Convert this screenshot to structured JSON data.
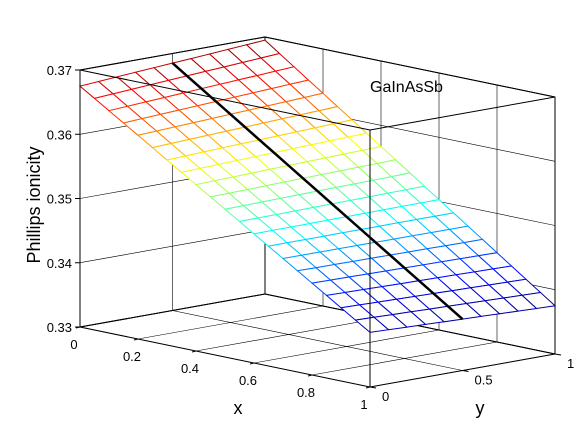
{
  "chart_data": {
    "type": "surface",
    "title": "",
    "annotation": "GaInAsSb",
    "xlabel": "x",
    "ylabel": "y",
    "zlabel": "Phillips ionicity",
    "xlim": [
      0,
      1
    ],
    "ylim": [
      0,
      1
    ],
    "zlim": [
      0.33,
      0.37
    ],
    "x_ticks": [
      "0",
      "0.2",
      "0.4",
      "0.6",
      "0.8",
      "1"
    ],
    "y_ticks": [
      "0",
      "0.5",
      "1"
    ],
    "z_ticks": [
      "0.33",
      "0.34",
      "0.35",
      "0.36",
      "0.37"
    ],
    "grid": true,
    "colormap": "jet",
    "surface_corners": {
      "x0_y0": 0.3675,
      "x1_y0": 0.3385,
      "x0_y1": 0.3695,
      "x1_y1": 0.3375
    },
    "highlight_line": {
      "y": 0.5,
      "x_start": 0.0,
      "x_end": 1.0,
      "color": "#000000"
    }
  }
}
